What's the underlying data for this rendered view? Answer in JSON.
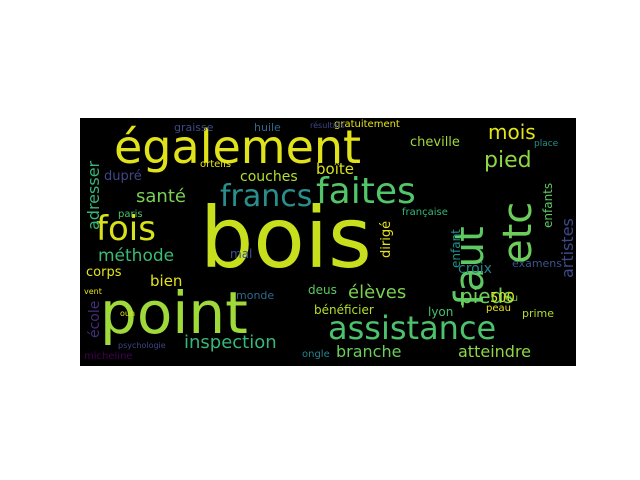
{
  "colors": {
    "background": "#000000",
    "page": "#ffffff"
  },
  "words": {
    "bois": "bois",
    "point": "point",
    "egalement": "également",
    "assistance": "assistance",
    "faites": "faites",
    "etc": "etc",
    "faut": "faut",
    "fois": "fois",
    "francs": "francs",
    "pied": "pied",
    "mois": "mois",
    "pieds": "pieds",
    "inspection": "inspection",
    "methode": "méthode",
    "sante": "santé",
    "artistes": "artistes",
    "adresser": "adresser",
    "eleves": "élèves",
    "atteindre": "atteindre",
    "branche": "branche",
    "boite": "boîte",
    "couches": "couches",
    "cheville": "cheville",
    "croix": "croix",
    "dirige": "dirigé",
    "beneficier": "bénéficier",
    "bien": "bien",
    "corps": "corps",
    "ecole": "école",
    "dupre": "dupré",
    "enfants": "enfants",
    "enfant": "enfant",
    "examens": "examens",
    "lyon": "lyon",
    "prime": "prime",
    "deus": "deus",
    "mal": "mal",
    "monde": "monde",
    "huile": "huile",
    "graisse": "graisse",
    "orteils": "orteils",
    "gratuitement": "gratuitement",
    "paris": "paris",
    "francaise": "française",
    "psychologie": "psychologie",
    "micheline": "micheline",
    "ongle": "ongle",
    "peau": "peau",
    "lieu": "lieu",
    "place": "place",
    "n500": "500",
    "resultats": "résultats",
    "oun": "oun",
    "vent": "vent"
  }
}
